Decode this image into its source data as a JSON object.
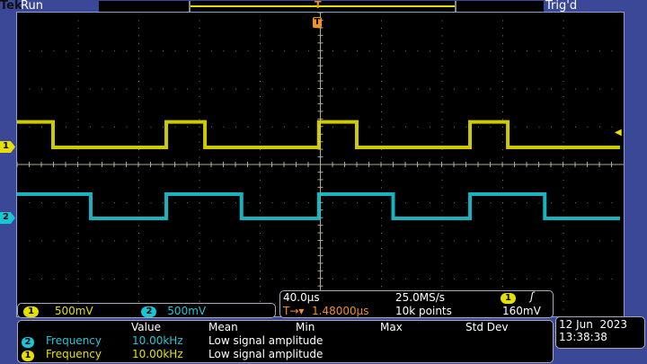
{
  "header": {
    "brand": "Tek",
    "state": "Run",
    "trigger_status": "Trig'd"
  },
  "colors": {
    "ch1": "#e6e000",
    "ch2": "#19c6d6",
    "trigger": "#f09020",
    "background": "#3b4898"
  },
  "channels": [
    {
      "id": "1",
      "scale": "500mV",
      "marker_level_div": -0.45
    },
    {
      "id": "2",
      "scale": "500mV",
      "marker_level_div": -1.4
    }
  ],
  "traces": {
    "time_per_div_us": 40,
    "ch1": {
      "high_div": 1.12,
      "low_div": 0.45,
      "edges_us": [
        0,
        23.7,
        98.4,
        123.9,
        199,
        224,
        298.7,
        323.6,
        397.6
      ],
      "start_high": true
    },
    "ch2": {
      "high_div": -0.78,
      "low_div": -1.42,
      "edges_us": [
        0,
        48.6,
        98.4,
        148,
        199,
        248,
        298.7,
        348,
        397.6
      ],
      "start_high": true
    }
  },
  "timebase": {
    "horizontal_scale": "40.0µs",
    "sample_rate": "25.0MS/s",
    "trigger_delay": "1.48000µs",
    "record_length": "10k points",
    "trigger_source": "1",
    "trigger_slope_icon": "rising-edge-icon",
    "trigger_level": "160mV"
  },
  "measurements": {
    "headers": [
      "Value",
      "Mean",
      "Min",
      "Max",
      "Std Dev"
    ],
    "rows": [
      {
        "channel": "2",
        "name": "Frequency",
        "value": "10.00kHz",
        "mean": "Low signal amplitude"
      },
      {
        "channel": "1",
        "name": "Frequency",
        "value": "10.00kHz",
        "mean": "Low signal amplitude"
      }
    ]
  },
  "datetime": {
    "date": "12 Jun  2023",
    "time": "13:38:38"
  }
}
